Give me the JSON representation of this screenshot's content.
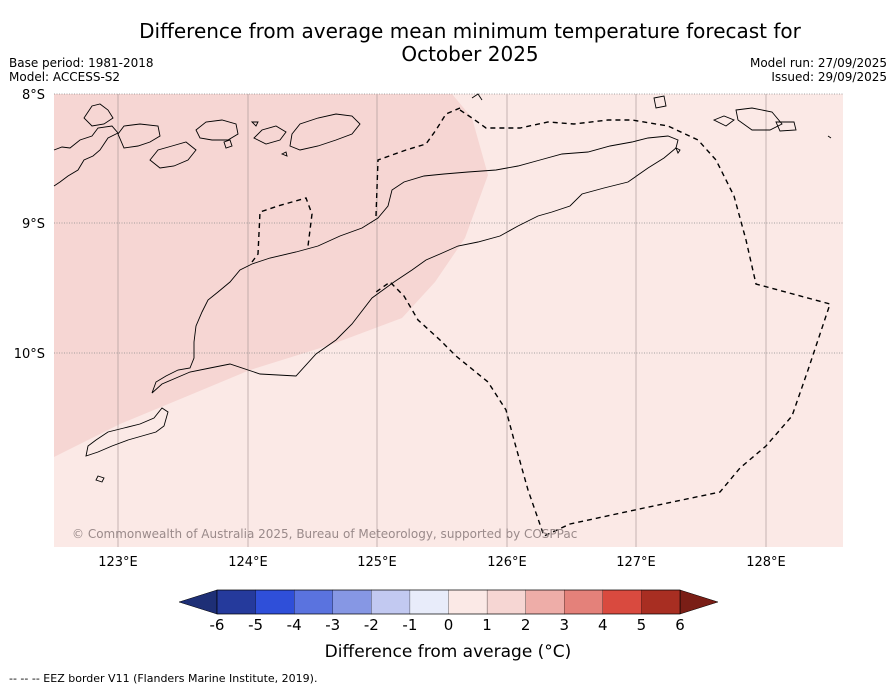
{
  "header": {
    "title_line1": "Difference from average mean minimum temperature forecast for",
    "title_line2": "October 2025",
    "base_period": "Base period: 1981-2018",
    "model": "Model: ACCESS-S2",
    "model_run": "Model run: 27/09/2025",
    "issued": "Issued: 29/09/2025"
  },
  "map": {
    "lat_labels": [
      "8°S",
      "9°S",
      "10°S"
    ],
    "lon_labels": [
      "123°E",
      "124°E",
      "125°E",
      "126°E",
      "127°E",
      "128°E"
    ],
    "copyright": "© Commonwealth of Australia 2025, Bureau of Meteorology, supported by COSPPac",
    "regions": [
      {
        "category": "1 to 2",
        "color": "#f6d6d3"
      },
      {
        "category": "0 to 1",
        "color": "#fbe9e6"
      }
    ]
  },
  "colorbar": {
    "title": "Difference from average (°C)",
    "ticks": [
      "-6",
      "-5",
      "-4",
      "-3",
      "-2",
      "-1",
      "0",
      "1",
      "2",
      "3",
      "4",
      "5",
      "6"
    ],
    "colors": [
      "#253a9c",
      "#2f4fd9",
      "#5a73df",
      "#8697e4",
      "#c2c9f1",
      "#e8ecfa",
      "#fbe9e6",
      "#f6d6d3",
      "#eeada8",
      "#e4817a",
      "#d94a3f",
      "#a82e22"
    ],
    "under_color": "#1e2f76",
    "over_color": "#7a1e16"
  },
  "footer": {
    "legend_line": "--  --  -- EEZ border V11 (Flanders Marine Institute, 2019)."
  }
}
